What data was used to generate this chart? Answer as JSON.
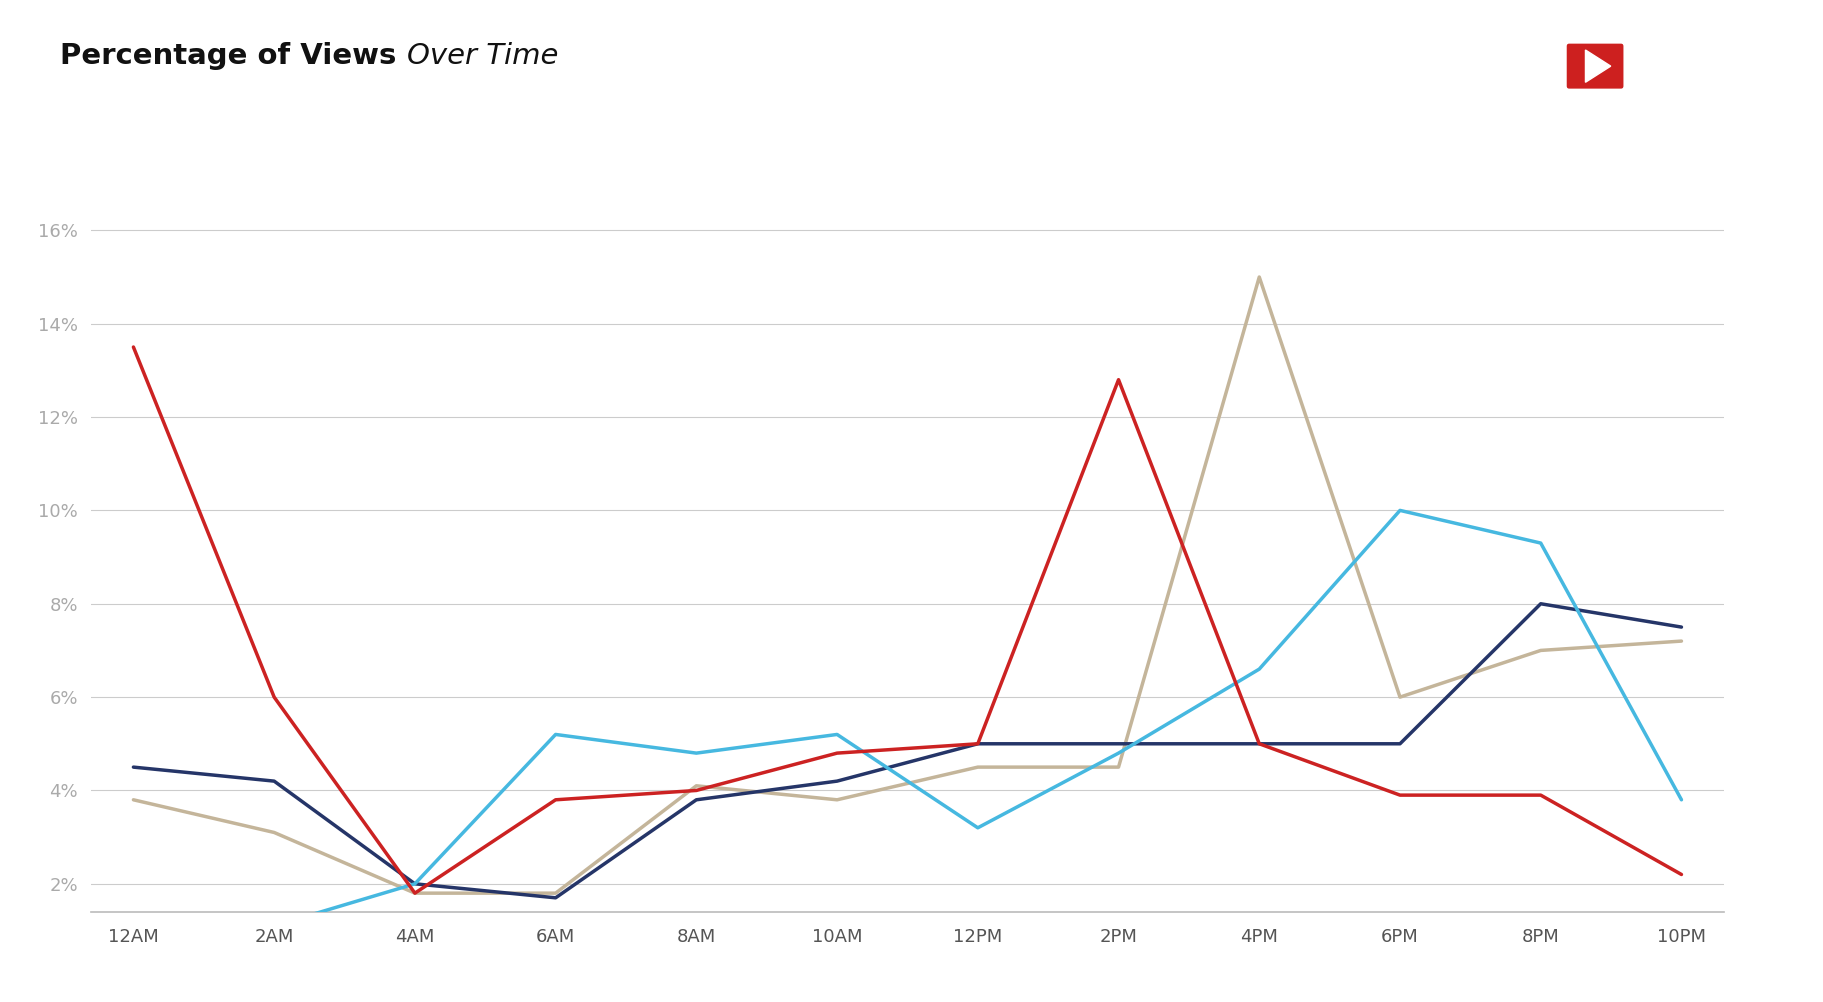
{
  "title_bold": "Percentage of Views ",
  "title_italic": "Over Time",
  "background_color": "#ffffff",
  "x_labels": [
    "12AM",
    "2AM",
    "4AM",
    "6AM",
    "8AM",
    "10AM",
    "12PM",
    "2PM",
    "4PM",
    "6PM",
    "8PM",
    "10PM"
  ],
  "x_values": [
    0,
    1,
    2,
    3,
    4,
    5,
    6,
    7,
    8,
    9,
    10,
    11
  ],
  "ylim": [
    1.4,
    17.5
  ],
  "yticks": [
    2,
    4,
    6,
    8,
    10,
    12,
    14,
    16
  ],
  "red_values": [
    13.5,
    6.0,
    1.8,
    3.8,
    4.0,
    4.8,
    5.0,
    12.8,
    5.0,
    3.9,
    3.9,
    2.2
  ],
  "dark_blue_values": [
    4.5,
    4.2,
    2.0,
    1.7,
    3.8,
    4.2,
    5.0,
    5.0,
    5.0,
    5.0,
    8.0,
    7.5
  ],
  "light_blue_values": [
    1.3,
    1.1,
    2.0,
    5.2,
    4.8,
    5.2,
    3.2,
    4.8,
    6.6,
    10.0,
    9.3,
    3.8
  ],
  "beige_values": [
    3.8,
    3.1,
    1.8,
    1.8,
    4.1,
    3.8,
    4.5,
    4.5,
    15.0,
    6.0,
    7.0,
    7.2
  ],
  "red_color": "#cc2222",
  "dark_blue_color": "#253568",
  "light_blue_color": "#46b8e0",
  "beige_color": "#c4b59a",
  "linewidth": 2.5,
  "grid_color": "#cccccc",
  "ytick_color": "#aaaaaa",
  "xtick_color": "#555555",
  "tick_fontsize": 13,
  "title_fontsize": 21,
  "youtube_color": "#cd201f",
  "facebook_color": "#3b5998",
  "instagram_color": "#c9b49a",
  "twitter_color": "#4ab3e0"
}
